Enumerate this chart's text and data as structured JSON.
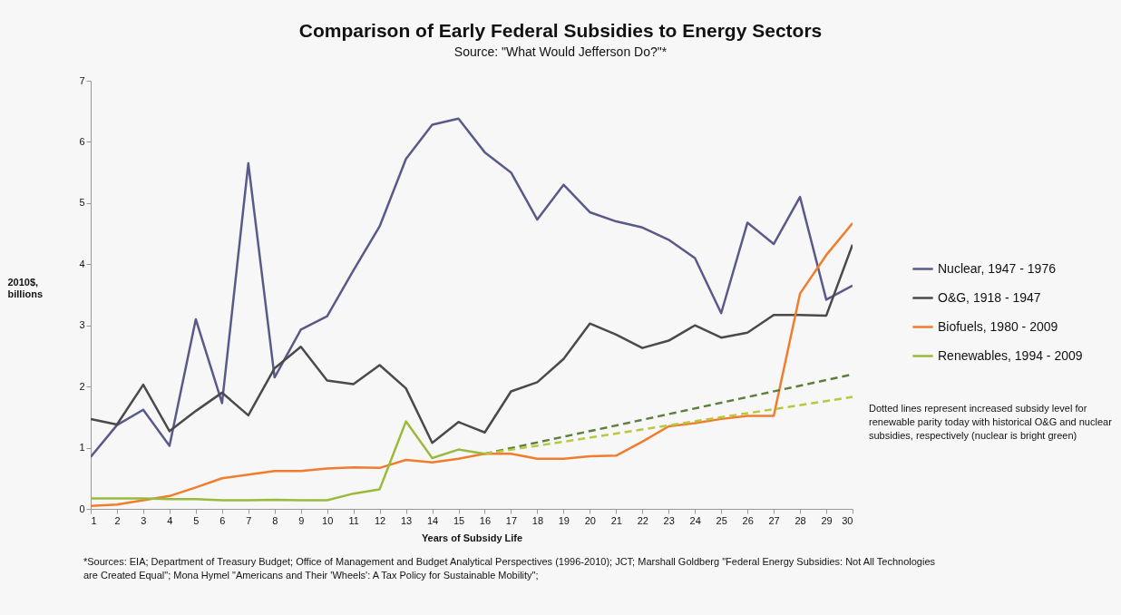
{
  "chart_data": {
    "type": "line",
    "title": "Comparison of Early Federal Subsidies to Energy Sectors",
    "subtitle": "Source:  \"What Would Jefferson Do?\"*",
    "xlabel": "Years of Subsidy Life",
    "ylabel": "2010$, billions",
    "x": [
      1,
      2,
      3,
      4,
      5,
      6,
      7,
      8,
      9,
      10,
      11,
      12,
      13,
      14,
      15,
      16,
      17,
      18,
      19,
      20,
      21,
      22,
      23,
      24,
      25,
      26,
      27,
      28,
      29,
      30
    ],
    "xlim": [
      1,
      30
    ],
    "xticks": [
      1,
      2,
      3,
      4,
      5,
      6,
      7,
      8,
      9,
      10,
      11,
      12,
      13,
      14,
      15,
      16,
      17,
      18,
      19,
      20,
      21,
      22,
      23,
      24,
      25,
      26,
      27,
      28,
      29,
      30
    ],
    "ylim": [
      0,
      7
    ],
    "yticks": [
      0,
      1,
      2,
      3,
      4,
      5,
      6,
      7
    ],
    "grid": false,
    "legend": "right",
    "line_style": "solid",
    "series": [
      {
        "name": "Nuclear, 1947 - 1976",
        "color": "#5a5a8a",
        "values": [
          0.85,
          1.37,
          1.62,
          1.03,
          3.1,
          1.73,
          5.65,
          2.15,
          2.93,
          3.15,
          3.9,
          4.62,
          5.72,
          6.28,
          6.38,
          5.83,
          5.5,
          4.73,
          5.3,
          4.85,
          4.7,
          4.6,
          4.4,
          4.1,
          3.2,
          4.68,
          4.33,
          5.1,
          3.42,
          3.65
        ]
      },
      {
        "name": "O&G, 1918 - 1947",
        "color": "#4a4a4a",
        "values": [
          1.47,
          1.38,
          2.03,
          1.27,
          1.6,
          1.9,
          1.53,
          2.3,
          2.65,
          2.1,
          2.04,
          2.35,
          1.97,
          1.08,
          1.42,
          1.25,
          1.92,
          2.07,
          2.45,
          3.03,
          2.85,
          2.63,
          2.75,
          3.0,
          2.8,
          2.88,
          3.17,
          3.17,
          3.16,
          4.32
        ]
      },
      {
        "name": "Biofuels, 1980 - 2009",
        "color": "#f07d2e",
        "values": [
          0.05,
          0.07,
          0.14,
          0.21,
          0.35,
          0.5,
          0.56,
          0.62,
          0.62,
          0.66,
          0.68,
          0.67,
          0.8,
          0.76,
          0.82,
          0.9,
          0.9,
          0.82,
          0.82,
          0.86,
          0.87,
          1.1,
          1.35,
          1.4,
          1.47,
          1.52,
          1.52,
          3.52,
          4.15,
          4.67
        ]
      },
      {
        "name": "Renewables, 1994 - 2009",
        "color": "#9aba3c",
        "x": [
          1,
          2,
          3,
          4,
          5,
          6,
          7,
          8,
          9,
          10,
          11,
          12,
          13,
          14,
          15,
          16
        ],
        "values": [
          0.17,
          0.17,
          0.17,
          0.16,
          0.16,
          0.14,
          0.14,
          0.15,
          0.14,
          0.14,
          0.25,
          0.32,
          1.43,
          0.83,
          0.97,
          0.9
        ]
      },
      {
        "color": "#5f7f3c",
        "line_style": "dashed",
        "x": [
          16,
          30
        ],
        "values": [
          0.9,
          2.2
        ]
      },
      {
        "color": "#b8c840",
        "line_style": "dashed",
        "x": [
          16,
          30
        ],
        "values": [
          0.9,
          1.83
        ]
      }
    ],
    "annotations": [
      "Dotted lines represent increased subsidy level for renewable parity today with historical O&G and nuclear subsidies, respectively (nuclear is bright green)",
      "*Sources: EIA; Department of Treasury Budget; Office of Management and Budget Analytical Perspectives (1996-2010); JCT; Marshall Goldberg \"Federal Energy Subsidies: Not All Technologies are Created Equal\"; Mona Hymel \"Americans and Their 'Wheels': A Tax Policy for Sustainable Mobility\";"
    ]
  }
}
